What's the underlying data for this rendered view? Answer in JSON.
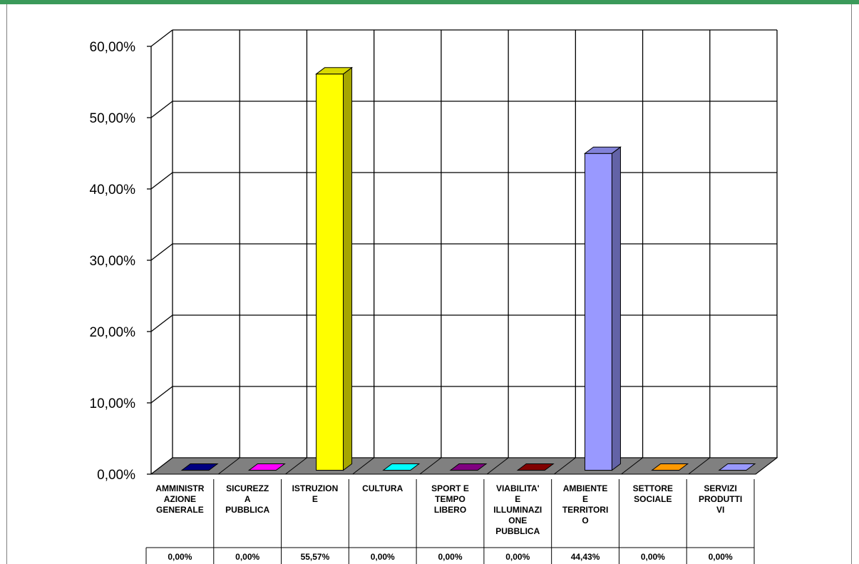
{
  "chart_data": {
    "type": "bar",
    "categories": [
      [
        "AMMINISTR",
        "AZIONE",
        "GENERALE"
      ],
      [
        "SICUREZZ",
        "A",
        "PUBBLICA"
      ],
      [
        "ISTRUZION",
        "E"
      ],
      [
        "CULTURA"
      ],
      [
        "SPORT E",
        "TEMPO",
        "LIBERO"
      ],
      [
        "VIABILITA'",
        "E",
        "ILLUMINAZI",
        "ONE",
        "PUBBLICA"
      ],
      [
        "AMBIENTE",
        "E",
        "TERRITORI",
        "O"
      ],
      [
        "SETTORE",
        "SOCIALE"
      ],
      [
        "SERVIZI",
        "PRODUTTI",
        "VI"
      ]
    ],
    "values": [
      0.0,
      0.0,
      55.57,
      0.0,
      0.0,
      0.0,
      44.43,
      0.0,
      0.0
    ],
    "value_labels": [
      "0,00%",
      "0,00%",
      "55,57%",
      "0,00%",
      "0,00%",
      "0,00%",
      "44,43%",
      "0,00%",
      "0,00%"
    ],
    "colors": [
      "#000080",
      "#ff00ff",
      "#ffff00",
      "#00ffff",
      "#800080",
      "#800000",
      "#9999ff",
      "#ff9900",
      "#9999ff"
    ],
    "yticks": [
      "0,00%",
      "10,00%",
      "20,00%",
      "30,00%",
      "40,00%",
      "50,00%",
      "60,00%"
    ],
    "ylim": [
      0,
      60
    ],
    "grid": true,
    "title": "",
    "xlabel": "",
    "ylabel": ""
  }
}
